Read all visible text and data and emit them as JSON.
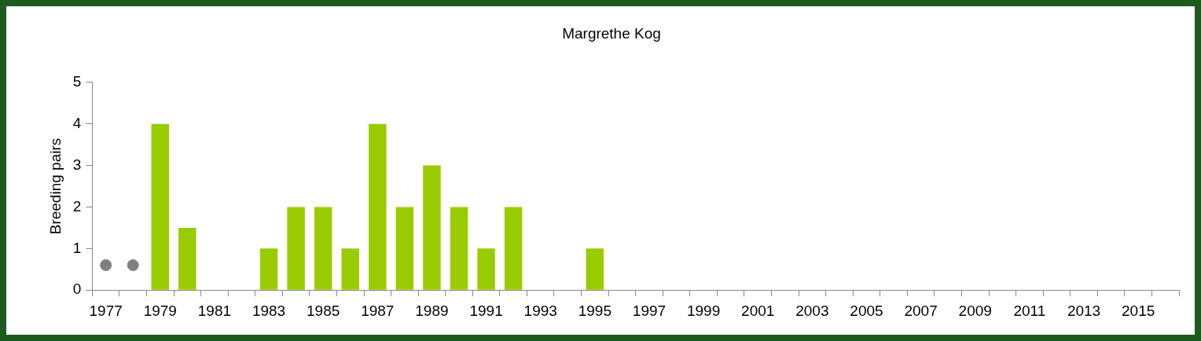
{
  "chart_data": {
    "type": "bar",
    "title": "Margrethe Kog",
    "ylabel": "Breeding pairs",
    "categories": [
      "1977",
      null,
      "1979",
      null,
      "1981",
      null,
      "1983",
      null,
      "1985",
      null,
      "1987",
      null,
      "1989",
      null,
      "1991",
      null,
      "1993",
      null,
      "1995",
      null,
      "1997",
      null,
      "1999",
      null,
      "2001",
      null,
      "2003",
      null,
      "2005",
      null,
      "2007",
      null,
      "2009",
      null,
      "2011",
      null,
      "2013",
      null,
      "2015",
      null
    ],
    "series": [
      {
        "color": "#99cc00",
        "values": [
          0,
          0,
          4,
          1.5,
          0,
          0,
          1,
          2,
          2,
          1,
          4,
          2,
          3,
          2,
          1,
          2,
          0,
          0,
          1,
          0,
          0,
          0,
          0,
          0,
          0,
          0,
          0,
          0,
          0,
          0,
          0,
          0,
          0,
          0,
          0,
          0,
          0,
          0,
          0,
          0
        ]
      },
      {
        "type": "scatter",
        "color": "#808080",
        "values": [
          0.6,
          0.6,
          null,
          null,
          null,
          null,
          null,
          null,
          null,
          null,
          null,
          null,
          null,
          null,
          null,
          null,
          null,
          null,
          null,
          null,
          null,
          null,
          null,
          null,
          null,
          null,
          null,
          null,
          null,
          null,
          null,
          null,
          null,
          null,
          null,
          null,
          null,
          null,
          null,
          null
        ]
      }
    ],
    "marker": "circle",
    "ylim": [
      0,
      5
    ],
    "yticks": [
      0,
      1,
      2,
      3,
      4,
      5
    ],
    "grid": false
  }
}
